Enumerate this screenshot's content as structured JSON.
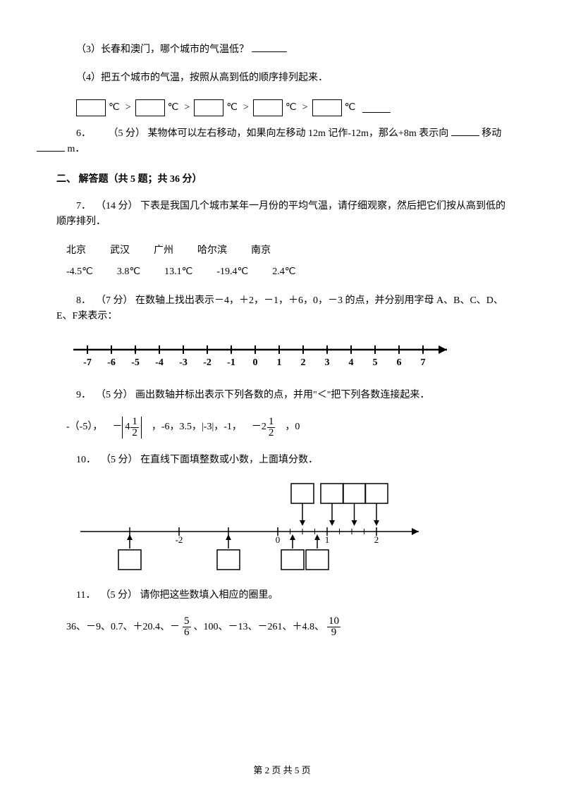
{
  "q3": {
    "text": "（3）长春和澳门，哪个城市的气温低？"
  },
  "q4": {
    "text": "（4）把五个城市的气温，按照从高到低的顺序排列起来．"
  },
  "unit": "℃",
  "gt": ">",
  "q6": {
    "prefix": "6．",
    "points": "（5 分）",
    "body1": "某物体可以左右移动，如果向左移动 12m 记作-12m，那么+8m 表示向",
    "body2": "移动",
    "body3": "m．"
  },
  "section2": "二、  解答题（共 5 题；共 36 分）",
  "q7": {
    "prefix": "7．",
    "points": "（14 分）",
    "body": "下表是我国几个城市某年一月份的平均气温，请仔细观察，然后把它们按从高到低的顺序排列．",
    "cities": [
      "北京",
      "武汉",
      "广州",
      "哈尔滨",
      "南京"
    ],
    "temps": [
      "-4.5℃",
      "3.8℃",
      "13.1℃",
      "-19.4℃",
      "2.4℃"
    ]
  },
  "q8": {
    "prefix": "8．",
    "points": "（7 分）",
    "body": "在数轴上找出表示－4，＋2，－1，＋6，0，－3 的点，并分别用字母 A、B、C、D、E、F来表示：",
    "ticks": [
      "-7",
      "-6",
      "-5",
      "-4",
      "-3",
      "-2",
      "-1",
      "0",
      "1",
      "2",
      "3",
      "4",
      "5",
      "6",
      "7"
    ]
  },
  "q9": {
    "prefix": "9．",
    "points": "（5 分）",
    "body": "画出数轴并标出表示下列各数的点，并用\"＜\"把下列各数连接起来．",
    "n1": "-（-5），",
    "n2_whole": "4",
    "n2_num": "1",
    "n2_den": "2",
    "n3": "，-6，3.5，|-3|，-1，",
    "n4_whole": "2",
    "n4_num": "1",
    "n4_den": "2",
    "n5": "，0"
  },
  "q10": {
    "prefix": "10．",
    "points": "（5 分）",
    "body": "在直线下面填整数或小数，上面填分数．",
    "labels": [
      "-2",
      "0",
      "1",
      "2"
    ]
  },
  "q11": {
    "prefix": "11．",
    "points": "（5 分）",
    "body": "请你把这些数填入相应的圈里。",
    "list1": "36、－9、0.7、＋20.4、－",
    "f1_num": "5",
    "f1_den": "6",
    "list2": "、100、－13、－261、＋4.8、",
    "f2_num": "10",
    "f2_den": "9"
  },
  "footer": "第 2 页 共 5 页"
}
